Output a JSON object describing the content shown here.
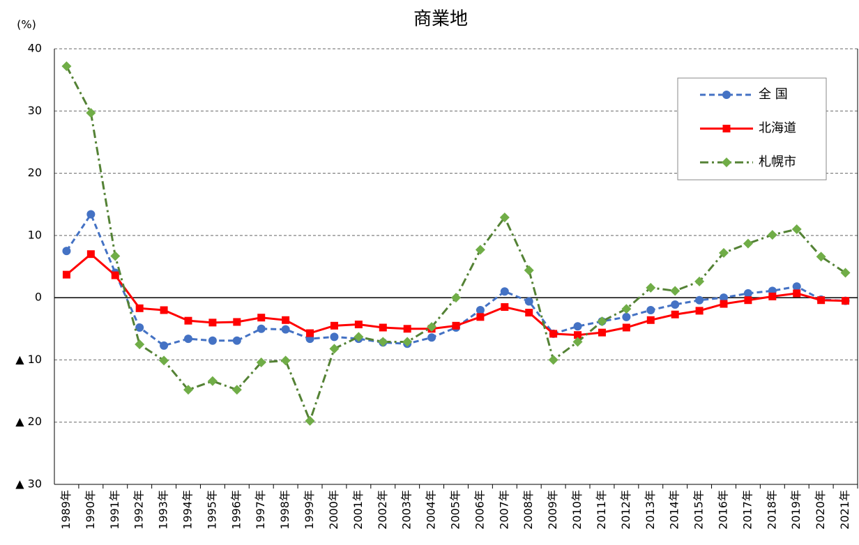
{
  "chart_data": {
    "type": "line",
    "title": "商業地",
    "y_axis_label": "(%)",
    "categories": [
      "1989年",
      "1990年",
      "1991年",
      "1992年",
      "1993年",
      "1994年",
      "1995年",
      "1996年",
      "1997年",
      "1998年",
      "1999年",
      "2000年",
      "2001年",
      "2002年",
      "2003年",
      "2004年",
      "2005年",
      "2006年",
      "2007年",
      "2008年",
      "2009年",
      "2010年",
      "2011年",
      "2012年",
      "2013年",
      "2014年",
      "2015年",
      "2016年",
      "2017年",
      "2018年",
      "2019年",
      "2020年",
      "2021年"
    ],
    "series": [
      {
        "name": "全 国",
        "color": "#4472c4",
        "line_style": "dashed",
        "marker": "circle",
        "values": [
          7.5,
          13.4,
          4.0,
          -4.8,
          -7.7,
          -6.6,
          -6.9,
          -6.9,
          -5.0,
          -5.1,
          -6.6,
          -6.3,
          -6.6,
          -7.2,
          -7.4,
          -6.4,
          -4.8,
          -2.0,
          1.0,
          -0.6,
          -5.8,
          -4.6,
          -3.8,
          -3.1,
          -2.0,
          -1.1,
          -0.4,
          0.0,
          0.7,
          1.1,
          1.8,
          -0.3,
          -0.5
        ]
      },
      {
        "name": "北海道",
        "color": "#ff0000",
        "line_style": "solid",
        "marker": "square",
        "values": [
          3.7,
          7.0,
          3.6,
          -1.7,
          -2.0,
          -3.7,
          -4.0,
          -3.9,
          -3.2,
          -3.6,
          -5.7,
          -4.5,
          -4.3,
          -4.8,
          -5.0,
          -5.0,
          -4.5,
          -3.1,
          -1.5,
          -2.4,
          -5.8,
          -6.0,
          -5.6,
          -4.8,
          -3.6,
          -2.7,
          -2.1,
          -1.0,
          -0.4,
          0.2,
          0.7,
          -0.4,
          -0.5
        ]
      },
      {
        "name": "札幌市",
        "color": "#548235",
        "marker_color": "#70ad47",
        "line_style": "dashdot",
        "marker": "diamond",
        "values": [
          37.2,
          29.7,
          6.7,
          -7.5,
          -10.1,
          -14.8,
          -13.4,
          -14.8,
          -10.4,
          -10.1,
          -19.8,
          -8.2,
          -6.3,
          -7.1,
          -7.1,
          -4.7,
          0.0,
          7.7,
          12.9,
          4.4,
          -10.0,
          -7.1,
          -3.8,
          -1.8,
          1.6,
          1.1,
          2.6,
          7.2,
          8.7,
          10.1,
          11.0,
          6.6,
          4.0
        ]
      }
    ],
    "ylim": [
      -30,
      40
    ],
    "yticks": [
      {
        "value": -30,
        "label": "▲ 30"
      },
      {
        "value": -20,
        "label": "▲ 20"
      },
      {
        "value": -10,
        "label": "▲ 10"
      },
      0,
      10,
      20,
      30,
      40
    ],
    "grid": true,
    "legend": "upper right"
  }
}
